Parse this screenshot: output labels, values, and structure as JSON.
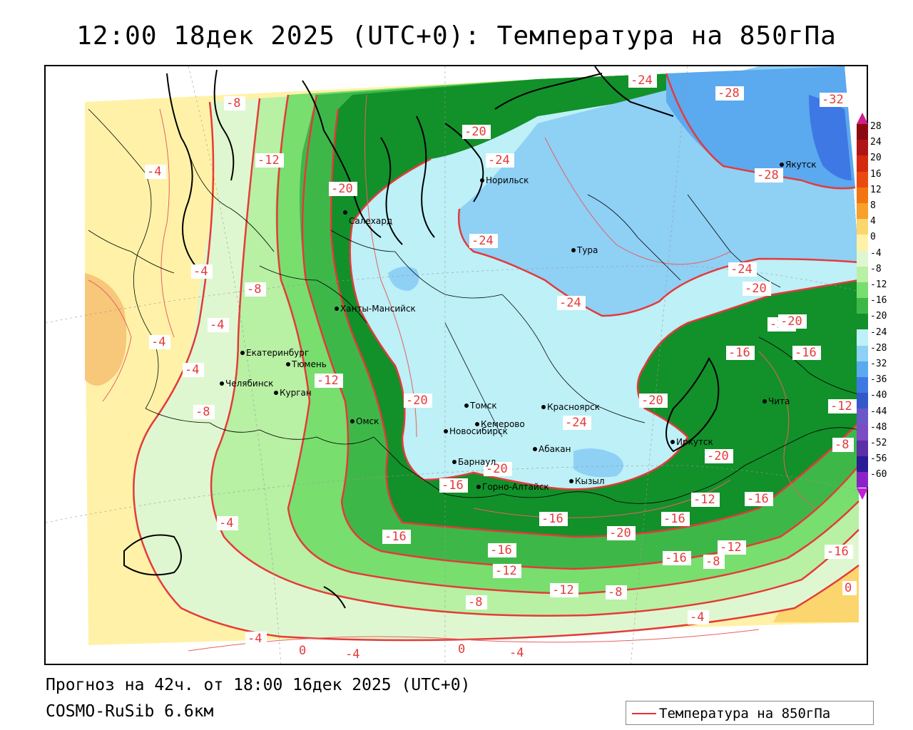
{
  "title": "12:00 18дек 2025 (UTC+0): Температура на 850гПа",
  "footer": {
    "forecast": "Прогноз на 42ч. от 18:00 16дек 2025 (UTC+0)",
    "model": "COSMO-RuSib 6.6км"
  },
  "legend": {
    "label": "Температура на 850гПа",
    "line_color": "#e53030"
  },
  "colorbar": {
    "labels": [
      "28",
      "24",
      "20",
      "16",
      "12",
      "8",
      "4",
      "0",
      "-4",
      "-8",
      "-12",
      "-16",
      "-20",
      "-24",
      "-28",
      "-32",
      "-36",
      "-40",
      "-44",
      "-48",
      "-52",
      "-56",
      "-60"
    ],
    "colors": [
      "#8b0a12",
      "#b01515",
      "#d52a10",
      "#ea4a0e",
      "#f2750f",
      "#f7a02a",
      "#fbd56d",
      "#fff2a8",
      "#dff7d0",
      "#b8f0a4",
      "#78de6e",
      "#3db848",
      "#12902a",
      "#bdf0f7",
      "#8fd0f5",
      "#5ba9ee",
      "#3d78e4",
      "#3358c8",
      "#6c57c9",
      "#7d4cc4",
      "#5a2fa8",
      "#2a1c96",
      "#8a22c8"
    ],
    "top_color": "#d01f8a",
    "bottom_color": "#c21fd8"
  },
  "cities": [
    {
      "name": "Салехард"
    },
    {
      "name": "Норильск"
    },
    {
      "name": "Тура"
    },
    {
      "name": "Якутск"
    },
    {
      "name": "Ханты-Мансийск"
    },
    {
      "name": "Екатеринбург"
    },
    {
      "name": "Тюмень"
    },
    {
      "name": "Челябинск"
    },
    {
      "name": "Курган"
    },
    {
      "name": "Омск"
    },
    {
      "name": "Новосибирск"
    },
    {
      "name": "Томск"
    },
    {
      "name": "Кемерово"
    },
    {
      "name": "Красноярск"
    },
    {
      "name": "Абакан"
    },
    {
      "name": "Барнаул"
    },
    {
      "name": "Горно-Алтайск"
    },
    {
      "name": "Кызыл"
    },
    {
      "name": "Иркутск"
    },
    {
      "name": "Чита"
    }
  ],
  "contour_labels": [
    "-8",
    "-12",
    "-4",
    "-4",
    "-4",
    "-4",
    "-4",
    "-8",
    "-8",
    "-20",
    "-20",
    "-24",
    "-24",
    "-24",
    "-24",
    "-28",
    "-28",
    "-32",
    "-20",
    "-24",
    "-20",
    "-20",
    "-16",
    "-16",
    "-12",
    "-12",
    "-8",
    "-20",
    "-24",
    "-20",
    "-20",
    "-16",
    "-16",
    "-16",
    "-12",
    "-16",
    "-20",
    "-16",
    "-16",
    "-12",
    "-12",
    "-8",
    "-8",
    "-8",
    "-12",
    "-16",
    "-4",
    "-4",
    "-4",
    "-4",
    "0",
    "0",
    "-4",
    "0",
    "-20",
    "-16"
  ]
}
